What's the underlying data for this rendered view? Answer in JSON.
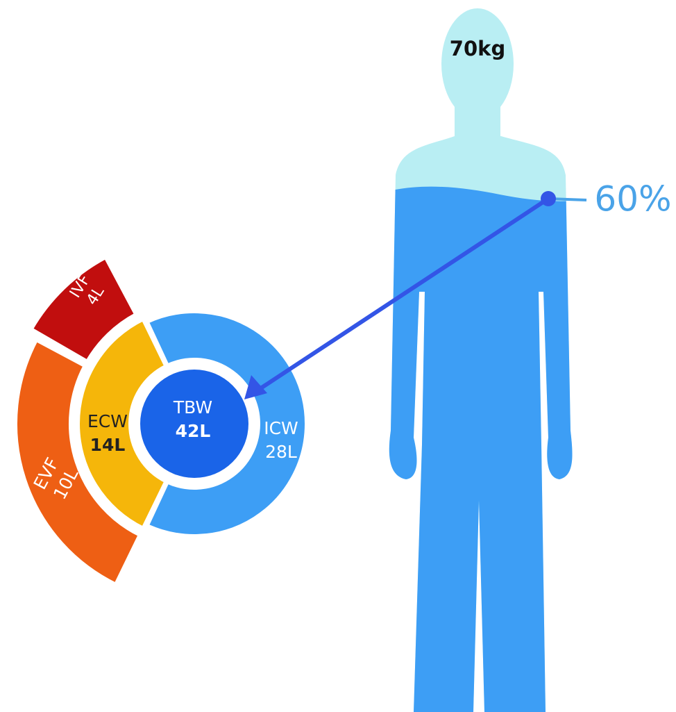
{
  "body": {
    "weight": "70kg",
    "water_fraction": "60%"
  },
  "compartments": {
    "tbw": {
      "name": "TBW",
      "volume": "42L"
    },
    "ecw": {
      "name": "ECW",
      "volume": "14L"
    },
    "icw": {
      "name": "ICW",
      "volume": "28L"
    },
    "evf": {
      "name": "EVF",
      "volume": "10L"
    },
    "ivf": {
      "name": "IVF",
      "volume": "4L"
    }
  }
}
